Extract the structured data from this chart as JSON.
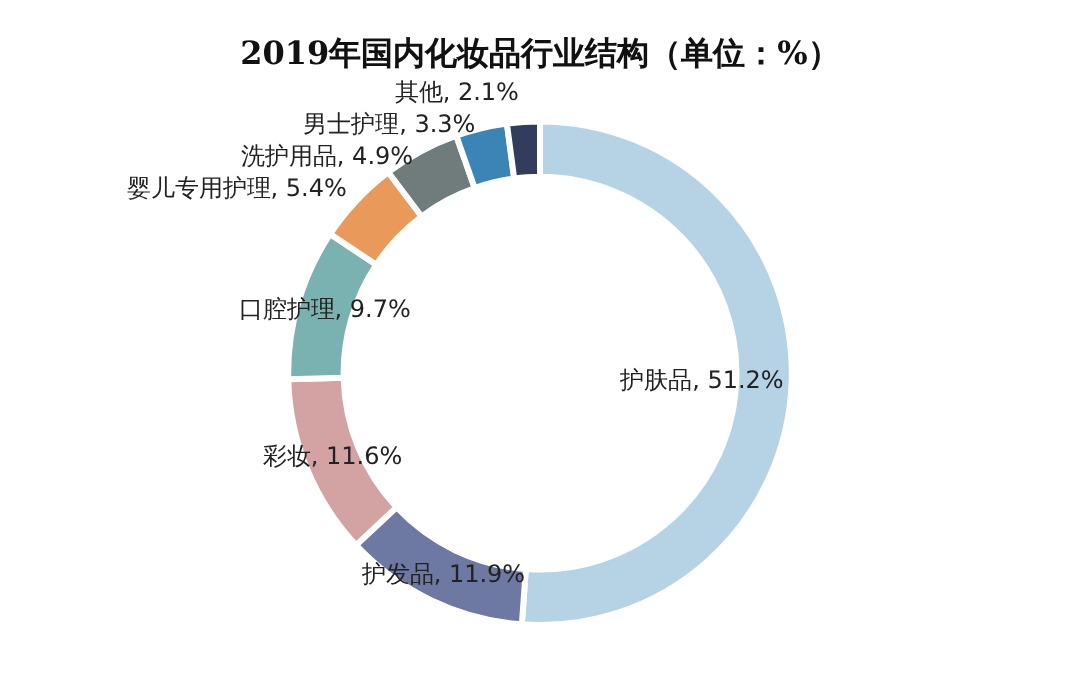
{
  "chart_data": {
    "type": "donut",
    "title": "2019年国内化妆品行业结构（单位：%）",
    "categories": [
      "护肤品",
      "护发品",
      "彩妆",
      "口腔护理",
      "婴儿专用护理",
      "洗护用品",
      "男士护理",
      "其他"
    ],
    "values": [
      51.2,
      11.9,
      11.6,
      9.7,
      5.4,
      4.9,
      3.3,
      2.1
    ],
    "value_labels": [
      "51.2%",
      "11.9%",
      "11.6%",
      "9.7%",
      "5.4%",
      "4.9%",
      "3.3%",
      "2.1%"
    ],
    "colors": [
      "#b5d3e5",
      "#6d78a3",
      "#d3a3a3",
      "#79b2b1",
      "#e99a5b",
      "#707b7c",
      "#3b84b6",
      "#323c5d"
    ],
    "legend": false
  }
}
